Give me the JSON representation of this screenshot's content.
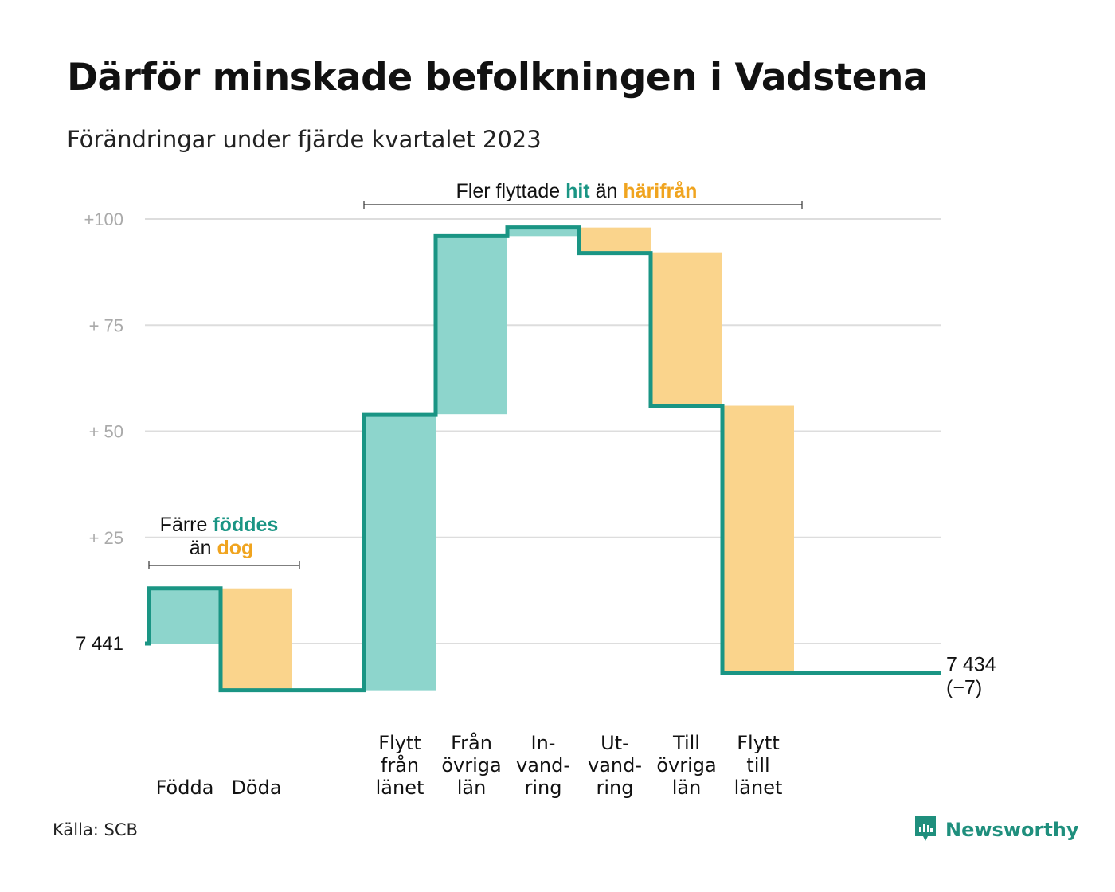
{
  "title": "Därför minskade befolkningen i Vadstena",
  "subtitle": "Förändringar under fjärde kvartalet 2023",
  "source": "Källa: SCB",
  "brand": "Newsworthy",
  "colors": {
    "increase": "#8dd5cc",
    "decrease": "#fad48c",
    "line": "#1a9584",
    "teal_text": "#1a9584",
    "orange_text": "#f0a41f",
    "grid": "#dddddd",
    "tick": "#aaaaaa"
  },
  "annotations": {
    "births": {
      "line1_pre": "Färre",
      "line1_hl": "föddes",
      "line2_pre": "än",
      "line2_hl": "dog"
    },
    "migration": {
      "pre": "Fler flyttade",
      "hl1": "hit",
      "mid": "än",
      "hl2": "härifrån"
    }
  },
  "chart_data": {
    "type": "waterfall",
    "title": "Därför minskade befolkningen i Vadstena",
    "subtitle": "Förändringar under fjärde kvartalet 2023",
    "start_label": "7  441",
    "start_value": 7441,
    "end_label": "7 434",
    "end_change_label": "(−7)",
    "end_value": 7434,
    "ylim": [
      -12,
      100
    ],
    "yticks": [
      {
        "value": 100,
        "label": "+100"
      },
      {
        "value": 75,
        "label": "+  75"
      },
      {
        "value": 50,
        "label": "+  50"
      },
      {
        "value": 25,
        "label": "+  25"
      }
    ],
    "categories": [
      {
        "lines": [
          "Födda"
        ],
        "change": 13,
        "type": "increase"
      },
      {
        "lines": [
          "Döda"
        ],
        "change": -24,
        "type": "decrease"
      },
      {
        "lines": [
          ""
        ],
        "change": 0,
        "type": "gap"
      },
      {
        "lines": [
          "Flytt",
          "från",
          "länet"
        ],
        "change": 65,
        "type": "increase"
      },
      {
        "lines": [
          "Från",
          "övriga",
          "län"
        ],
        "change": 42,
        "type": "increase"
      },
      {
        "lines": [
          "In-",
          "vand-",
          "ring"
        ],
        "change": 2,
        "type": "increase"
      },
      {
        "lines": [
          "Ut-",
          "vand-",
          "ring"
        ],
        "change": -6,
        "type": "decrease"
      },
      {
        "lines": [
          "Till",
          "övriga",
          "län"
        ],
        "change": -36,
        "type": "decrease"
      },
      {
        "lines": [
          "Flytt",
          "till",
          "länet"
        ],
        "change": -63,
        "type": "decrease"
      }
    ],
    "grid": true
  }
}
